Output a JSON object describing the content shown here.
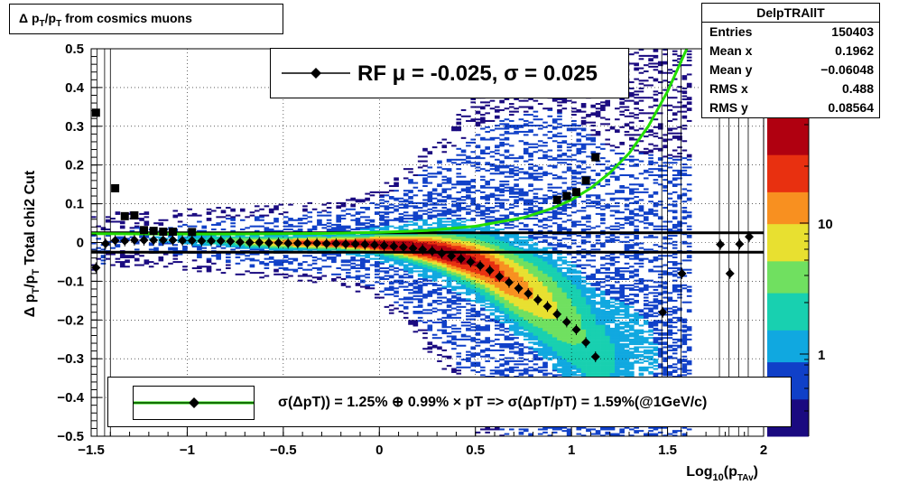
{
  "title": "Δ p_T/p_T from cosmics muons",
  "stats": {
    "name": "DelpTRAllT",
    "rows": [
      {
        "label": "Entries",
        "value": "150403"
      },
      {
        "label": "Mean x",
        "value": "0.1962"
      },
      {
        "label": "Mean y",
        "value": "−0.06048"
      },
      {
        "label": "RMS x",
        "value": "0.488"
      },
      {
        "label": "RMS y",
        "value": "0.08564"
      }
    ]
  },
  "fit_label": "RF μ = -0.025, σ =   0.025",
  "resolution_label": "σ(ΔpT)) =  1.25% ⊕  0.99% × pT => σ(ΔpT/pT) =  1.59%(@1GeV/c)",
  "colors": {
    "fit_curve": "#22dd00",
    "points": "#000000",
    "hlines": "#000000"
  },
  "chart_data": {
    "type": "heatmap",
    "title": "Δ p_T/p_T from cosmics muons",
    "xlabel": "Log_10(p_TAv)",
    "ylabel": "Δ p_T/p_T   Total chi2 Cut",
    "xlim": [
      -1.5,
      2
    ],
    "ylim": [
      -0.5,
      0.5
    ],
    "x_ticks": [
      "−1.5",
      "−1",
      "−0.5",
      "0",
      "0.5",
      "1",
      "1.5",
      "2"
    ],
    "y_ticks": [
      "−0.5",
      "−0.4",
      "−0.3",
      "−0.2",
      "−0.1",
      "0",
      "0.1",
      "0.2",
      "0.3",
      "0.4",
      "0.5"
    ],
    "z_ticks": [
      "1",
      "10"
    ],
    "colormap": [
      "#1a0a80",
      "#1040c8",
      "#10a8e0",
      "#18d0b0",
      "#70e060",
      "#e8e030",
      "#f89020",
      "#e83010",
      "#b00010"
    ],
    "grid": true,
    "hlines": [
      0.025,
      -0.025
    ],
    "mean_points": {
      "x": [
        -1.475,
        -1.425,
        -1.375,
        -1.325,
        -1.275,
        -1.225,
        -1.175,
        -1.125,
        -1.075,
        -1.025,
        -0.975,
        -0.925,
        -0.875,
        -0.825,
        -0.775,
        -0.725,
        -0.675,
        -0.625,
        -0.575,
        -0.525,
        -0.475,
        -0.425,
        -0.375,
        -0.325,
        -0.275,
        -0.225,
        -0.175,
        -0.125,
        -0.075,
        -0.025,
        0.025,
        0.075,
        0.125,
        0.175,
        0.225,
        0.275,
        0.325,
        0.375,
        0.425,
        0.475,
        0.525,
        0.575,
        0.625,
        0.675,
        0.725,
        0.775,
        0.825,
        0.875,
        0.925,
        0.975,
        1.025,
        1.075,
        1.125,
        1.475,
        1.575,
        1.775,
        1.825,
        1.875,
        1.925
      ],
      "y": [
        -0.065,
        -0.003,
        0.005,
        0.004,
        0.006,
        0.006,
        0.006,
        0.006,
        0.006,
        0.005,
        0.005,
        0.004,
        0.004,
        0.004,
        0.003,
        0.001,
        0.0,
        0.0,
        -0.001,
        -0.001,
        -0.002,
        -0.002,
        -0.002,
        -0.002,
        -0.003,
        -0.003,
        -0.004,
        -0.004,
        -0.005,
        -0.006,
        -0.008,
        -0.01,
        -0.012,
        -0.015,
        -0.018,
        -0.022,
        -0.028,
        -0.035,
        -0.042,
        -0.05,
        -0.06,
        -0.072,
        -0.088,
        -0.103,
        -0.118,
        -0.132,
        -0.148,
        -0.165,
        -0.185,
        -0.205,
        -0.225,
        -0.258,
        -0.295,
        -0.18,
        -0.08,
        -0.005,
        -0.08,
        -0.004,
        0.015
      ]
    },
    "sigma_points": {
      "x": [
        -1.475,
        -1.375,
        -1.325,
        -1.275,
        -1.225,
        -1.175,
        -1.125,
        -1.075,
        -0.975,
        0.925,
        0.975,
        1.025,
        1.075,
        1.125
      ],
      "y": [
        0.335,
        0.14,
        0.068,
        0.07,
        0.032,
        0.03,
        0.028,
        0.028,
        0.027,
        0.11,
        0.12,
        0.13,
        0.16,
        0.22
      ]
    },
    "fit_curve": {
      "x": [
        -1.5,
        -1.25,
        -1.0,
        -0.75,
        -0.5,
        -0.25,
        0.0,
        0.25,
        0.5,
        0.75,
        0.9,
        1.0,
        1.1,
        1.2,
        1.3,
        1.4,
        1.5,
        1.6
      ],
      "y": [
        0.0225,
        0.0222,
        0.022,
        0.022,
        0.0225,
        0.0235,
        0.026,
        0.031,
        0.042,
        0.064,
        0.088,
        0.11,
        0.14,
        0.18,
        0.23,
        0.3,
        0.39,
        0.5
      ]
    }
  }
}
